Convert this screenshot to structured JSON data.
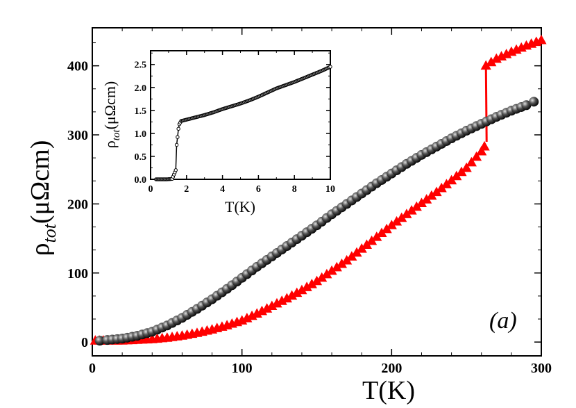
{
  "chart_data": [
    {
      "type": "scatter",
      "panel_label": "(a)",
      "xlabel": "T(K)",
      "ylabel": {
        "main": "ρ",
        "sub": "tot",
        "unit": "(μΩcm)"
      },
      "xlim": [
        0,
        300
      ],
      "ylim": [
        -20,
        455
      ],
      "xticks": [
        0,
        100,
        200,
        300
      ],
      "yticks": [
        0,
        100,
        200,
        300,
        400
      ],
      "grid": false,
      "series": [
        {
          "marker": "circle",
          "color": "#000000",
          "x": [
            5,
            10,
            20,
            30,
            40,
            50,
            60,
            70,
            80,
            90,
            100,
            110,
            120,
            130,
            140,
            150,
            160,
            170,
            180,
            190,
            200,
            210,
            220,
            230,
            240,
            250,
            260,
            270,
            280,
            290,
            295
          ],
          "y": [
            2,
            3,
            5,
            9,
            15,
            24,
            35,
            48,
            62,
            77,
            93,
            109,
            124,
            139,
            154,
            169,
            185,
            200,
            215,
            230,
            244,
            258,
            271,
            283,
            295,
            306,
            316,
            326,
            335,
            343,
            348
          ]
        },
        {
          "marker": "triangle",
          "color": "#ff0000",
          "x": [
            2,
            10,
            20,
            30,
            40,
            50,
            60,
            70,
            80,
            90,
            100,
            110,
            120,
            130,
            140,
            150,
            160,
            170,
            180,
            190,
            200,
            210,
            220,
            230,
            240,
            250,
            260,
            262
          ],
          "y": [
            2,
            2,
            2,
            3,
            4,
            6,
            9,
            13,
            18,
            24,
            31,
            41,
            52,
            63,
            75,
            88,
            103,
            118,
            135,
            152,
            169,
            185,
            201,
            217,
            234,
            252,
            276,
            283
          ]
        },
        {
          "marker": "triangle",
          "color": "#ff0000",
          "x": [
            263,
            270,
            280,
            290,
            300
          ],
          "y": [
            400,
            410,
            420,
            429,
            437
          ]
        }
      ],
      "annotations": [
        {
          "type": "arrow",
          "color": "#ff0000",
          "x": 263,
          "from_y": 290,
          "to_y": 400
        }
      ]
    },
    {
      "type": "line",
      "inset": true,
      "xlabel": "T(K)",
      "ylabel": {
        "main": "ρ",
        "sub": "tot",
        "unit": "(μΩcm)"
      },
      "xlim": [
        0,
        10
      ],
      "ylim": [
        0,
        2.8
      ],
      "xticks": [
        0,
        2,
        4,
        6,
        8,
        10
      ],
      "yticks": [
        "0.0",
        "0.5",
        "1.0",
        "1.5",
        "2.0",
        "2.5"
      ],
      "grid": false,
      "series": [
        {
          "marker": "circle",
          "color": "#000000",
          "x": [
            0.3,
            0.6,
            0.9,
            1.2,
            1.4,
            1.45,
            1.5,
            1.55,
            1.6,
            1.7,
            2,
            2.5,
            3,
            3.5,
            4,
            4.5,
            5,
            5.5,
            6,
            6.5,
            7,
            7.5,
            8,
            8.5,
            9,
            9.5,
            10
          ],
          "y": [
            0,
            0,
            0,
            0.01,
            0.2,
            0.75,
            0.92,
            1.1,
            1.2,
            1.27,
            1.3,
            1.35,
            1.4,
            1.46,
            1.53,
            1.59,
            1.65,
            1.72,
            1.8,
            1.89,
            1.98,
            2.05,
            2.12,
            2.2,
            2.28,
            2.36,
            2.45
          ]
        }
      ]
    }
  ]
}
